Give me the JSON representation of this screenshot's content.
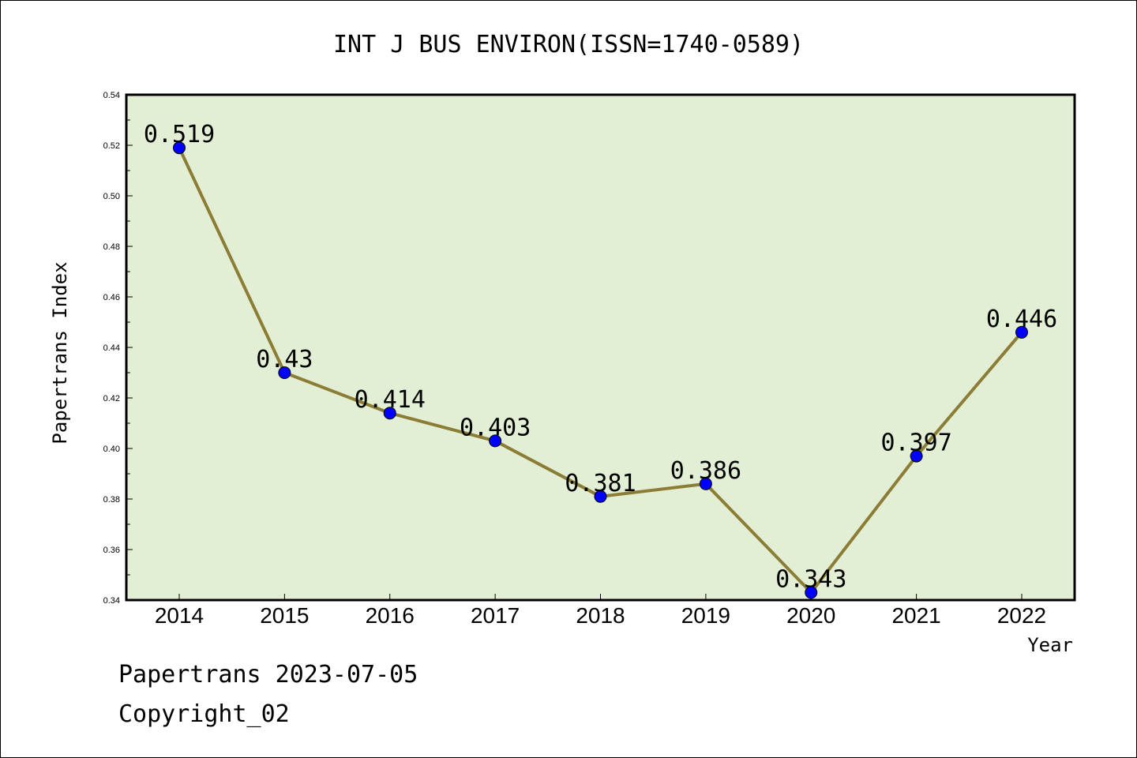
{
  "chart_data": {
    "type": "line",
    "title": "INT J BUS ENVIRON(ISSN=1740-0589)",
    "xlabel": "Year",
    "ylabel": "Papertrans Index",
    "categories": [
      "2014",
      "2015",
      "2016",
      "2017",
      "2018",
      "2019",
      "2020",
      "2021",
      "2022"
    ],
    "values": [
      0.519,
      0.43,
      0.414,
      0.403,
      0.381,
      0.386,
      0.343,
      0.397,
      0.446
    ],
    "data_labels": [
      "0.519",
      "0.43",
      "0.414",
      "0.403",
      "0.381",
      "0.386",
      "0.343",
      "0.397",
      "0.446"
    ],
    "ylim": [
      0.34,
      0.54
    ],
    "yticks": [
      "0.34",
      "0.36",
      "0.38",
      "0.40",
      "0.42",
      "0.44",
      "0.46",
      "0.48",
      "0.50",
      "0.52",
      "0.54"
    ],
    "grid": false,
    "colors": {
      "plot_background": "#e2efd4",
      "line": "#8b7d35",
      "marker": "#0000ff"
    }
  },
  "footer": {
    "line1": "Papertrans 2023-07-05",
    "line2": "Copyright_02"
  }
}
